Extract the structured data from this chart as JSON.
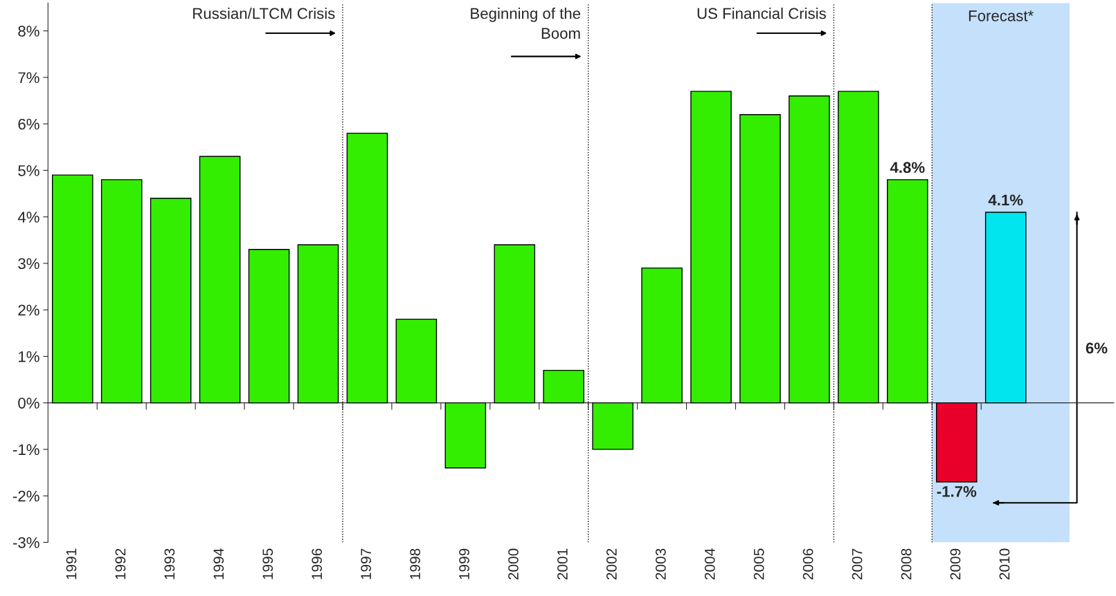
{
  "chart_data": {
    "type": "bar",
    "x": [
      1991,
      1992,
      1993,
      1994,
      1995,
      1996,
      1997,
      1998,
      1999,
      2000,
      2001,
      2002,
      2003,
      2004,
      2005,
      2006,
      2007,
      2008,
      2009,
      2010
    ],
    "values": [
      4.9,
      4.8,
      4.4,
      5.3,
      3.3,
      3.4,
      5.8,
      1.8,
      -1.4,
      3.4,
      0.7,
      -1.0,
      2.9,
      6.7,
      6.2,
      6.6,
      6.7,
      4.8,
      -1.7,
      4.1
    ],
    "colors": [
      "#33ee00",
      "#33ee00",
      "#33ee00",
      "#33ee00",
      "#33ee00",
      "#33ee00",
      "#33ee00",
      "#33ee00",
      "#33ee00",
      "#33ee00",
      "#33ee00",
      "#33ee00",
      "#33ee00",
      "#33ee00",
      "#33ee00",
      "#33ee00",
      "#33ee00",
      "#33ee00",
      "#e8002a",
      "#00e5ee"
    ],
    "value_labels": [
      null,
      null,
      null,
      null,
      null,
      null,
      null,
      null,
      null,
      null,
      null,
      null,
      null,
      null,
      null,
      null,
      null,
      "4.8%",
      "-1.7%",
      "4.1%"
    ],
    "xlim": [
      1990.5,
      2012.2
    ],
    "xticks": [
      1991,
      1992,
      1993,
      1994,
      1995,
      1996,
      1997,
      1998,
      1999,
      2000,
      2001,
      2002,
      2003,
      2004,
      2005,
      2006,
      2007,
      2008,
      2009,
      2010,
      {
        "value": 1991.5,
        "label": null
      },
      {
        "value": 1992.5,
        "label": null
      },
      {
        "value": 1993.5,
        "label": null
      },
      {
        "value": 1994.5,
        "label": null
      },
      {
        "value": 1995.5,
        "label": null
      },
      {
        "value": 1996.5,
        "label": null
      },
      {
        "value": 1997.5,
        "label": null
      },
      {
        "value": 1998.5,
        "label": null
      },
      {
        "value": 1999.5,
        "label": null
      },
      {
        "value": 2000.5,
        "label": null
      },
      {
        "value": 2001.5,
        "label": null
      },
      {
        "value": 2002.5,
        "label": null
      },
      {
        "value": 2003.5,
        "label": null
      },
      {
        "value": 2004.5,
        "label": null
      },
      {
        "value": 2005.5,
        "label": null
      },
      {
        "value": 2006.5,
        "label": null
      },
      {
        "value": 2007.5,
        "label": null
      },
      {
        "value": 2008.5,
        "label": null
      },
      {
        "value": 2009.5,
        "label": null
      }
    ],
    "ylim": [
      -3,
      8.6
    ],
    "yticks": [
      {
        "value": -3,
        "label": "-3%"
      },
      {
        "value": -2,
        "label": "-2%"
      },
      {
        "value": -1,
        "label": "-1%"
      },
      {
        "value": 0,
        "label": "0%"
      },
      {
        "value": 1,
        "label": "1%"
      },
      {
        "value": 2,
        "label": "2%"
      },
      {
        "value": 3,
        "label": "3%"
      },
      {
        "value": 4,
        "label": "4%"
      },
      {
        "value": 5,
        "label": "5%"
      },
      {
        "value": 6,
        "label": "6%"
      },
      {
        "value": 7,
        "label": "7%"
      },
      {
        "value": 8,
        "label": "8%"
      }
    ],
    "ref_lines": [
      {
        "axis": "x",
        "value": 1996.5,
        "label": "Russian/LTCM Crisis",
        "line_style": "dotted",
        "color": "#000000"
      },
      {
        "axis": "x",
        "value": 2001.5,
        "label": "Beginning of the\nBoom",
        "line_style": "dotted",
        "color": "#000000"
      },
      {
        "axis": "x",
        "value": 2006.5,
        "label": "US Financial Crisis",
        "line_style": "dotted",
        "color": "#000000"
      },
      {
        "axis": "x",
        "value": 2008.5,
        "label": null,
        "line_style": "dotted",
        "color": "#000000"
      }
    ],
    "bands": [
      {
        "axis": "x",
        "from": 2008.5,
        "to": 2011.3,
        "label": "Forecast*",
        "color": "#c4e0fb"
      }
    ],
    "annotations": [
      "6%"
    ]
  }
}
